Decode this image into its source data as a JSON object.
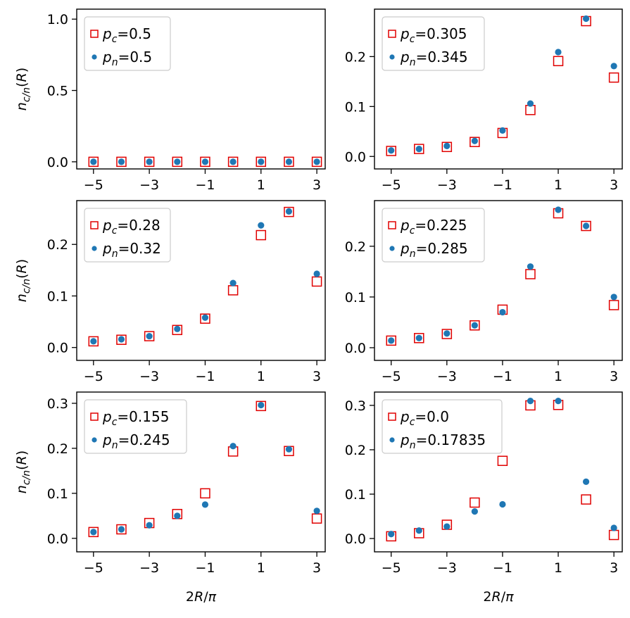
{
  "chart_data": [
    {
      "type": "scatter",
      "panel": "top-left",
      "x": [
        -5,
        -4,
        -3,
        -2,
        -1,
        0,
        1,
        2,
        3
      ],
      "series": [
        {
          "name": "p_c=0.5",
          "marker": "open-square",
          "values": [
            0,
            0,
            0,
            0,
            0,
            0,
            0,
            0,
            0
          ]
        },
        {
          "name": "p_n=0.5",
          "marker": "dot",
          "values": [
            0,
            0,
            0,
            0,
            0,
            0,
            0,
            0,
            0
          ]
        }
      ],
      "ylabel": "n_{c/n}(R)",
      "xlabel": "",
      "xticks": [
        -5,
        -3,
        -1,
        1,
        3
      ],
      "xtick_labels": [
        "−5",
        "−3",
        "−1",
        "1",
        "3"
      ],
      "yticks": [
        0,
        0.5,
        1
      ],
      "ytick_labels": [
        "0.0",
        "0.5",
        "1.0"
      ],
      "xlim": [
        -5.6,
        3.3
      ],
      "ylim": [
        -0.05,
        1.07
      ],
      "legend": {
        "position": "top-left",
        "entries": [
          {
            "var": "p",
            "sub": "c",
            "value": "=0.5"
          },
          {
            "var": "p",
            "sub": "n",
            "value": "=0.5"
          }
        ]
      }
    },
    {
      "type": "scatter",
      "panel": "top-right",
      "x": [
        -5,
        -4,
        -3,
        -2,
        -1,
        0,
        1,
        2,
        3
      ],
      "series": [
        {
          "name": "p_c=0.305",
          "marker": "open-square",
          "values": [
            0.011,
            0.015,
            0.019,
            0.029,
            0.047,
            0.093,
            0.191,
            0.271,
            0.158
          ]
        },
        {
          "name": "p_n=0.345",
          "marker": "dot",
          "values": [
            0.012,
            0.015,
            0.021,
            0.031,
            0.052,
            0.106,
            0.209,
            0.276,
            0.181
          ]
        }
      ],
      "ylabel": "",
      "xlabel": "",
      "xticks": [
        -5,
        -3,
        -1,
        1,
        3
      ],
      "xtick_labels": [
        "−5",
        "−3",
        "−1",
        "1",
        "3"
      ],
      "yticks": [
        0,
        0.1,
        0.2
      ],
      "ytick_labels": [
        "0.0",
        "0.1",
        "0.2"
      ],
      "xlim": [
        -5.6,
        3.3
      ],
      "ylim": [
        -0.025,
        0.295
      ],
      "legend": {
        "position": "top-left",
        "entries": [
          {
            "var": "p",
            "sub": "c",
            "value": "=0.305"
          },
          {
            "var": "p",
            "sub": "n",
            "value": "=0.345"
          }
        ]
      }
    },
    {
      "type": "scatter",
      "panel": "middle-left",
      "x": [
        -5,
        -4,
        -3,
        -2,
        -1,
        0,
        1,
        2,
        3
      ],
      "series": [
        {
          "name": "p_c=0.28",
          "marker": "open-square",
          "values": [
            0.012,
            0.015,
            0.022,
            0.034,
            0.056,
            0.111,
            0.218,
            0.263,
            0.128
          ]
        },
        {
          "name": "p_n=0.32",
          "marker": "dot",
          "values": [
            0.012,
            0.016,
            0.022,
            0.036,
            0.058,
            0.125,
            0.237,
            0.264,
            0.143
          ]
        }
      ],
      "ylabel": "n_{c/n}(R)",
      "xlabel": "",
      "xticks": [
        -5,
        -3,
        -1,
        1,
        3
      ],
      "xtick_labels": [
        "−5",
        "−3",
        "−1",
        "1",
        "3"
      ],
      "yticks": [
        0,
        0.1,
        0.2
      ],
      "ytick_labels": [
        "0.0",
        "0.1",
        "0.2"
      ],
      "xlim": [
        -5.6,
        3.3
      ],
      "ylim": [
        -0.025,
        0.285
      ],
      "legend": {
        "position": "top-left",
        "entries": [
          {
            "var": "p",
            "sub": "c",
            "value": "=0.28"
          },
          {
            "var": "p",
            "sub": "n",
            "value": "=0.32"
          }
        ]
      }
    },
    {
      "type": "scatter",
      "panel": "middle-right",
      "x": [
        -5,
        -4,
        -3,
        -2,
        -1,
        0,
        1,
        2,
        3
      ],
      "series": [
        {
          "name": "p_c=0.225",
          "marker": "open-square",
          "values": [
            0.014,
            0.019,
            0.027,
            0.044,
            0.075,
            0.145,
            0.265,
            0.24,
            0.084
          ]
        },
        {
          "name": "p_n=0.285",
          "marker": "dot",
          "values": [
            0.014,
            0.019,
            0.028,
            0.044,
            0.07,
            0.16,
            0.272,
            0.24,
            0.1
          ]
        }
      ],
      "ylabel": "",
      "xlabel": "",
      "xticks": [
        -5,
        -3,
        -1,
        1,
        3
      ],
      "xtick_labels": [
        "−5",
        "−3",
        "−1",
        "1",
        "3"
      ],
      "yticks": [
        0,
        0.1,
        0.2
      ],
      "ytick_labels": [
        "0.0",
        "0.1",
        "0.2"
      ],
      "xlim": [
        -5.6,
        3.3
      ],
      "ylim": [
        -0.025,
        0.29
      ],
      "legend": {
        "position": "top-left",
        "entries": [
          {
            "var": "p",
            "sub": "c",
            "value": "=0.225"
          },
          {
            "var": "p",
            "sub": "n",
            "value": "=0.285"
          }
        ]
      }
    },
    {
      "type": "scatter",
      "panel": "bottom-left",
      "x": [
        -5,
        -4,
        -3,
        -2,
        -1,
        0,
        1,
        2,
        3
      ],
      "series": [
        {
          "name": "p_c=0.155",
          "marker": "open-square",
          "values": [
            0.014,
            0.02,
            0.034,
            0.054,
            0.1,
            0.193,
            0.294,
            0.194,
            0.044
          ]
        },
        {
          "name": "p_n=0.245",
          "marker": "dot",
          "values": [
            0.014,
            0.02,
            0.029,
            0.05,
            0.075,
            0.205,
            0.296,
            0.198,
            0.061
          ]
        }
      ],
      "ylabel": "n_{c/n}(R)",
      "xlabel": "2R/π",
      "xticks": [
        -5,
        -3,
        -1,
        1,
        3
      ],
      "xtick_labels": [
        "−5",
        "−3",
        "−1",
        "1",
        "3"
      ],
      "yticks": [
        0,
        0.1,
        0.2,
        0.3
      ],
      "ytick_labels": [
        "0.0",
        "0.1",
        "0.2",
        "0.3"
      ],
      "xlim": [
        -5.6,
        3.3
      ],
      "ylim": [
        -0.03,
        0.325
      ],
      "legend": {
        "position": "top-left",
        "entries": [
          {
            "var": "p",
            "sub": "c",
            "value": "=0.155"
          },
          {
            "var": "p",
            "sub": "n",
            "value": "=0.245"
          }
        ]
      }
    },
    {
      "type": "scatter",
      "panel": "bottom-right",
      "x": [
        -5,
        -4,
        -3,
        -2,
        -1,
        0,
        1,
        2,
        3
      ],
      "series": [
        {
          "name": "p_c=0.0",
          "marker": "open-square",
          "values": [
            0.005,
            0.012,
            0.031,
            0.081,
            0.175,
            0.3,
            0.301,
            0.088,
            0.008
          ]
        },
        {
          "name": "p_n=0.17835",
          "marker": "dot",
          "values": [
            0.01,
            0.018,
            0.027,
            0.061,
            0.077,
            0.31,
            0.31,
            0.128,
            0.024
          ]
        }
      ],
      "ylabel": "",
      "xlabel": "2R/π",
      "xticks": [
        -5,
        -3,
        -1,
        1,
        3
      ],
      "xtick_labels": [
        "−5",
        "−3",
        "−1",
        "1",
        "3"
      ],
      "yticks": [
        0,
        0.1,
        0.2,
        0.3
      ],
      "ytick_labels": [
        "0.0",
        "0.1",
        "0.2",
        "0.3"
      ],
      "xlim": [
        -5.6,
        3.3
      ],
      "ylim": [
        -0.03,
        0.33
      ],
      "legend": {
        "position": "top-left",
        "entries": [
          {
            "var": "p",
            "sub": "c",
            "value": "=0.0"
          },
          {
            "var": "p",
            "sub": "n",
            "value": "=0.17835"
          }
        ]
      }
    }
  ],
  "colors": {
    "square_edge": "#e00000",
    "dot_fill": "#1f77b4",
    "axes": "#000000",
    "legend_frame": "#cccccc",
    "background": "#ffffff"
  }
}
